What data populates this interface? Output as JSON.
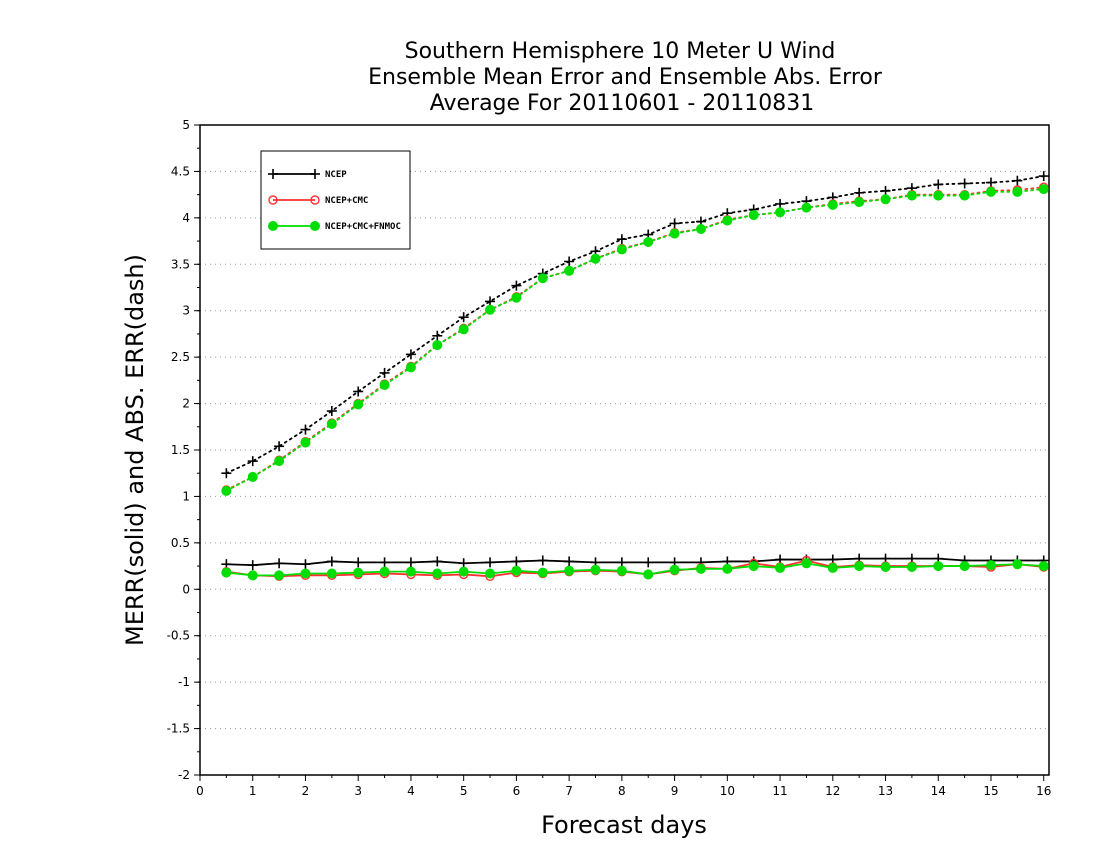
{
  "chart_data": {
    "type": "line",
    "title": [
      "Southern Hemisphere 10 Meter U Wind",
      "Ensemble Mean Error and Ensemble Abs. Error",
      "Average For 20110601 - 20110831"
    ],
    "xlabel": "Forecast days",
    "ylabel": "MERR(solid) and ABS. ERR(dash)",
    "xlim": [
      0,
      16.1
    ],
    "ylim": [
      -2,
      5
    ],
    "x_ticks": [
      0,
      1,
      2,
      3,
      4,
      5,
      6,
      7,
      8,
      9,
      10,
      11,
      12,
      13,
      14,
      15,
      16
    ],
    "x_tick_labels": [
      "0",
      "1",
      "2",
      "3",
      "4",
      "5",
      "6",
      "7",
      "8",
      "9",
      "10",
      "11",
      "12",
      "13",
      "14",
      "15",
      "16"
    ],
    "y_ticks": [
      -2,
      -1.5,
      -1,
      -0.5,
      0,
      0.5,
      1,
      1.5,
      2,
      2.5,
      3,
      3.5,
      4,
      4.5,
      5
    ],
    "y_tick_labels": [
      "-2",
      "-1.5",
      "-1",
      "-0.5",
      "0",
      "0.5",
      "1",
      "1.5",
      "2",
      "2.5",
      "3",
      "3.5",
      "4",
      "4.5",
      "5"
    ],
    "grid": "horizontal dotted",
    "legend_position": "top-left",
    "x": [
      0.5,
      1,
      1.5,
      2,
      2.5,
      3,
      3.5,
      4,
      4.5,
      5,
      5.5,
      6,
      6.5,
      7,
      7.5,
      8,
      8.5,
      9,
      9.5,
      10,
      10.5,
      11,
      11.5,
      12,
      12.5,
      13,
      13.5,
      14,
      14.5,
      15,
      15.5,
      16
    ],
    "series": [
      {
        "name": "NCEP",
        "color": "#000000",
        "marker": "plus",
        "abs_err": [
          1.25,
          1.38,
          1.54,
          1.72,
          1.92,
          2.13,
          2.33,
          2.53,
          2.73,
          2.93,
          3.1,
          3.27,
          3.4,
          3.53,
          3.64,
          3.77,
          3.82,
          3.94,
          3.96,
          4.05,
          4.09,
          4.15,
          4.18,
          4.22,
          4.27,
          4.29,
          4.32,
          4.36,
          4.37,
          4.38,
          4.4,
          4.45
        ],
        "merr": [
          0.27,
          0.26,
          0.28,
          0.27,
          0.3,
          0.29,
          0.29,
          0.29,
          0.3,
          0.28,
          0.29,
          0.3,
          0.31,
          0.3,
          0.29,
          0.29,
          0.29,
          0.29,
          0.29,
          0.3,
          0.3,
          0.32,
          0.32,
          0.32,
          0.33,
          0.33,
          0.33,
          0.33,
          0.31,
          0.31,
          0.31,
          0.31
        ]
      },
      {
        "name": "NCEP+CMC",
        "color": "#ff3030",
        "marker": "open-circle",
        "abs_err": [
          1.07,
          1.21,
          1.39,
          1.59,
          1.79,
          2.0,
          2.21,
          2.4,
          2.63,
          2.81,
          3.01,
          3.15,
          3.35,
          3.43,
          3.56,
          3.67,
          3.74,
          3.84,
          3.88,
          3.98,
          4.03,
          4.06,
          4.11,
          4.15,
          4.18,
          4.2,
          4.25,
          4.25,
          4.25,
          4.29,
          4.3,
          4.33
        ],
        "merr": [
          0.19,
          0.15,
          0.14,
          0.15,
          0.15,
          0.16,
          0.17,
          0.16,
          0.15,
          0.16,
          0.14,
          0.18,
          0.17,
          0.19,
          0.2,
          0.19,
          0.16,
          0.2,
          0.23,
          0.22,
          0.28,
          0.24,
          0.31,
          0.24,
          0.26,
          0.25,
          0.25,
          0.25,
          0.25,
          0.24,
          0.27,
          0.24
        ]
      },
      {
        "name": "NCEP+CMC+FNMOC",
        "color": "#00dd00",
        "marker": "filled-circle",
        "abs_err": [
          1.06,
          1.21,
          1.38,
          1.58,
          1.78,
          1.99,
          2.2,
          2.39,
          2.63,
          2.8,
          3.01,
          3.14,
          3.35,
          3.43,
          3.56,
          3.66,
          3.74,
          3.83,
          3.88,
          3.97,
          4.03,
          4.06,
          4.11,
          4.14,
          4.17,
          4.2,
          4.24,
          4.24,
          4.24,
          4.28,
          4.28,
          4.31
        ],
        "merr": [
          0.18,
          0.15,
          0.15,
          0.17,
          0.17,
          0.18,
          0.19,
          0.19,
          0.17,
          0.19,
          0.17,
          0.2,
          0.18,
          0.2,
          0.21,
          0.2,
          0.16,
          0.21,
          0.22,
          0.22,
          0.25,
          0.23,
          0.28,
          0.23,
          0.25,
          0.24,
          0.24,
          0.25,
          0.25,
          0.26,
          0.27,
          0.25
        ]
      }
    ]
  }
}
